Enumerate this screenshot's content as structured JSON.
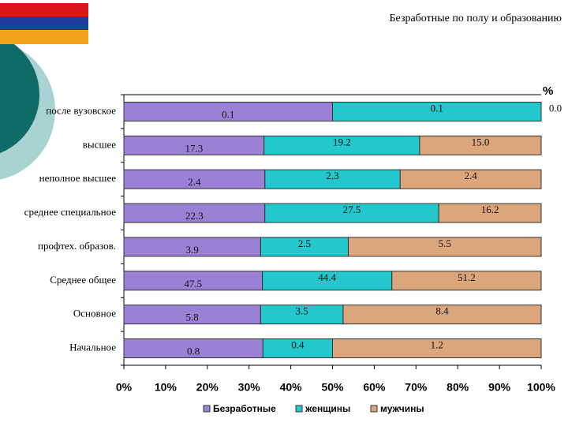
{
  "chart_data": {
    "type": "bar",
    "orientation": "horizontal",
    "stacked": "percent",
    "title": "Безработные по полу и образованию",
    "unit_label": "%",
    "categories": [
      "после вузовское",
      "высшее",
      "неполное высшее",
      "среднее специальное",
      "профтех. образов.",
      "Среднее общее",
      "Основное",
      "Начальное"
    ],
    "series": [
      {
        "name": "Безработные",
        "color": "#9b80d6",
        "values": [
          0.1,
          17.3,
          2.4,
          22.3,
          3.9,
          47.5,
          5.8,
          0.8
        ]
      },
      {
        "name": "женщины",
        "color": "#22c8cc",
        "values": [
          0.1,
          19.2,
          2.3,
          27.5,
          2.5,
          44.4,
          3.5,
          0.4
        ]
      },
      {
        "name": "мужчины",
        "color": "#dba67c",
        "values": [
          0.0,
          15.0,
          2.4,
          16.2,
          5.5,
          51.2,
          8.4,
          1.2
        ],
        "value_labels": [
          "0.0",
          "15.0",
          "2.4",
          "16.2",
          "5.5",
          "51.2",
          "8.4",
          "1.2"
        ]
      }
    ],
    "xlim": [
      0,
      100
    ],
    "xticks": [
      {
        "value": 0,
        "label": "0%"
      },
      {
        "value": 10,
        "label": "10%"
      },
      {
        "value": 20,
        "label": "20%"
      },
      {
        "value": 30,
        "label": "30%"
      },
      {
        "value": 40,
        "label": "40%"
      },
      {
        "value": 50,
        "label": "50%"
      },
      {
        "value": 60,
        "label": "60%"
      },
      {
        "value": 70,
        "label": "70%"
      },
      {
        "value": 80,
        "label": "80%"
      },
      {
        "value": 90,
        "label": "90%"
      },
      {
        "value": 100,
        "label": "100%"
      }
    ],
    "legend": "bottom"
  }
}
